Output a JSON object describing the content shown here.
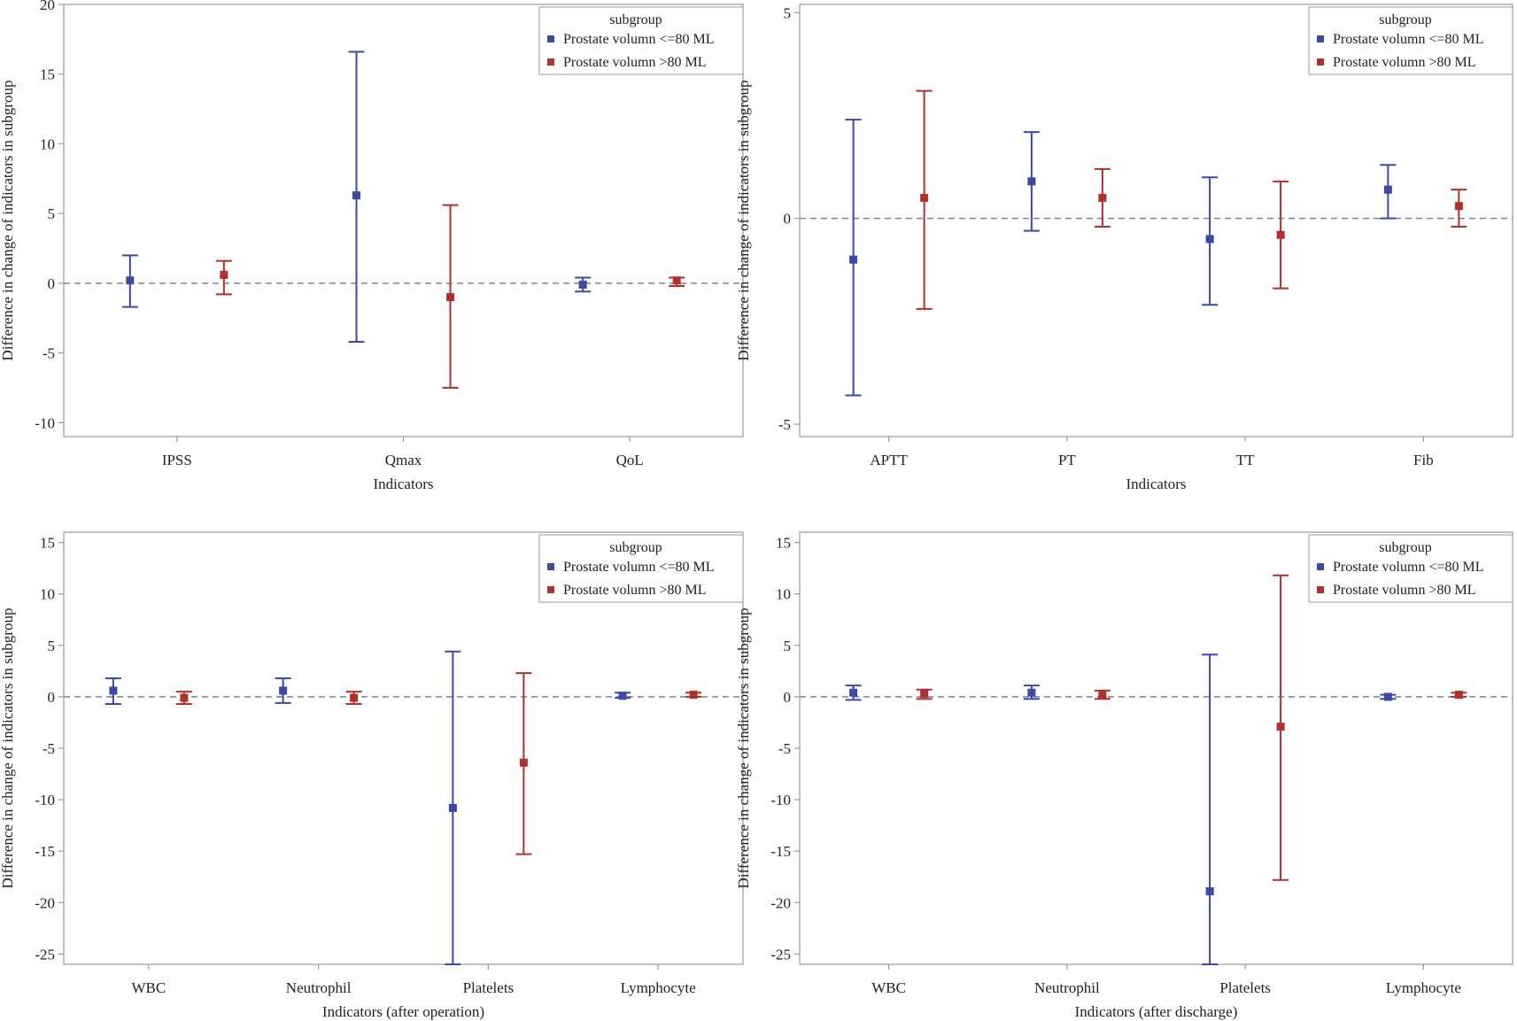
{
  "colors": {
    "blue": "#3a4aa6",
    "red": "#b0302a",
    "axis": "#9a9a9a",
    "refline": "#7b8494"
  },
  "chart_data": [
    {
      "type": "errorbar",
      "xlabel": "Indicators",
      "ylabel": "Difference in change of indicators in subgroup",
      "ylim": [
        -11,
        20
      ],
      "yticks": [
        -10,
        -5,
        0,
        5,
        10,
        15,
        20
      ],
      "yticklabels": [
        "-10",
        "-5",
        "0",
        "5",
        "10",
        "15",
        "20"
      ],
      "categories": [
        "IPSS",
        "Qmax",
        "QoL"
      ],
      "legend": {
        "title": "subgroup",
        "entries": [
          "Prostate volumn <=80 ML",
          "Prostate volumn >80 ML"
        ]
      },
      "series": [
        {
          "name": "Prostate volumn <=80 ML",
          "color_key": "blue",
          "mean": [
            0.2,
            6.3,
            -0.1
          ],
          "lower": [
            -1.7,
            -4.2,
            -0.6
          ],
          "upper": [
            2.0,
            16.6,
            0.4
          ]
        },
        {
          "name": "Prostate volumn >80 ML",
          "color_key": "red",
          "mean": [
            0.6,
            -1.0,
            0.2
          ],
          "lower": [
            -0.8,
            -7.5,
            -0.2
          ],
          "upper": [
            1.6,
            5.6,
            0.4
          ]
        }
      ]
    },
    {
      "type": "errorbar",
      "xlabel": "Indicators",
      "ylabel": "Difference in change of indicators in subgroup",
      "ylim": [
        -5.3,
        5.2
      ],
      "yticks": [
        -5,
        0,
        5
      ],
      "yticklabels": [
        "-5",
        "0",
        "5"
      ],
      "categories": [
        "APTT",
        "PT",
        "TT",
        "Fib"
      ],
      "legend": {
        "title": "subgroup",
        "entries": [
          "Prostate volumn <=80 ML",
          "Prostate volumn >80 ML"
        ]
      },
      "series": [
        {
          "name": "Prostate volumn <=80 ML",
          "color_key": "blue",
          "mean": [
            -1.0,
            0.9,
            -0.5,
            0.7
          ],
          "lower": [
            -4.3,
            -0.3,
            -2.1,
            0.0
          ],
          "upper": [
            2.4,
            2.1,
            1.0,
            1.3
          ]
        },
        {
          "name": "Prostate volumn >80 ML",
          "color_key": "red",
          "mean": [
            0.5,
            0.5,
            -0.4,
            0.3
          ],
          "lower": [
            -2.2,
            -0.2,
            -1.7,
            -0.2
          ],
          "upper": [
            3.1,
            1.2,
            0.9,
            0.7
          ]
        }
      ]
    },
    {
      "type": "errorbar",
      "xlabel": "Indicators (after operation)",
      "ylabel": "Difference in change of indicators in subgroup",
      "ylim": [
        -26,
        16
      ],
      "yticks": [
        -25,
        -20,
        -15,
        -10,
        -5,
        0,
        5,
        10,
        15
      ],
      "yticklabels": [
        "-25",
        "-20",
        "-15",
        "-10",
        "-5",
        "0",
        "5",
        "10",
        "15"
      ],
      "categories": [
        "WBC",
        "Neutrophil",
        "Platelets",
        "Lymphocyte"
      ],
      "legend": {
        "title": "subgroup",
        "entries": [
          "Prostate volumn <=80 ML",
          "Prostate volumn >80 ML"
        ]
      },
      "series": [
        {
          "name": "Prostate volumn <=80 ML",
          "color_key": "blue",
          "mean": [
            0.6,
            0.6,
            -10.8,
            0.1
          ],
          "lower": [
            -0.7,
            -0.6,
            -26.0,
            -0.1
          ],
          "upper": [
            1.8,
            1.8,
            4.4,
            0.4
          ]
        },
        {
          "name": "Prostate volumn >80 ML",
          "color_key": "red",
          "mean": [
            -0.1,
            -0.1,
            -6.4,
            0.2
          ],
          "lower": [
            -0.7,
            -0.7,
            -15.3,
            0.0
          ],
          "upper": [
            0.5,
            0.5,
            2.3,
            0.4
          ]
        }
      ]
    },
    {
      "type": "errorbar",
      "xlabel": "Indicators (after discharge)",
      "ylabel": "Difference in change of indicators in subgroup",
      "ylim": [
        -26,
        16
      ],
      "yticks": [
        -25,
        -20,
        -15,
        -10,
        -5,
        0,
        5,
        10,
        15
      ],
      "yticklabels": [
        "-25",
        "-20",
        "-15",
        "-10",
        "-5",
        "0",
        "5",
        "10",
        "15"
      ],
      "categories": [
        "WBC",
        "Neutrophil",
        "Platelets",
        "Lymphocyte"
      ],
      "legend": {
        "title": "subgroup",
        "entries": [
          "Prostate volumn <=80 ML",
          "Prostate volumn >80 ML"
        ]
      },
      "series": [
        {
          "name": "Prostate volumn <=80 ML",
          "color_key": "blue",
          "mean": [
            0.4,
            0.4,
            -18.9,
            0.0
          ],
          "lower": [
            -0.3,
            -0.2,
            -26.0,
            -0.2
          ],
          "upper": [
            1.1,
            1.1,
            4.1,
            0.2
          ]
        },
        {
          "name": "Prostate volumn >80 ML",
          "color_key": "red",
          "mean": [
            0.3,
            0.2,
            -2.9,
            0.2
          ],
          "lower": [
            -0.2,
            -0.2,
            -17.8,
            0.0
          ],
          "upper": [
            0.7,
            0.6,
            11.8,
            0.4
          ]
        }
      ]
    }
  ]
}
